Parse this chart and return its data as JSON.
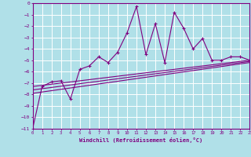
{
  "xlabel": "Windchill (Refroidissement éolien,°C)",
  "ylabel": "",
  "bg_color": "#b0e0e8",
  "line_color": "#800080",
  "grid_color": "#ffffff",
  "xlim": [
    0,
    23
  ],
  "ylim": [
    -11,
    0
  ],
  "xticks": [
    0,
    1,
    2,
    3,
    4,
    5,
    6,
    7,
    8,
    9,
    10,
    11,
    12,
    13,
    14,
    15,
    16,
    17,
    18,
    19,
    20,
    21,
    22,
    23
  ],
  "yticks": [
    0,
    -1,
    -2,
    -3,
    -4,
    -5,
    -6,
    -7,
    -8,
    -9,
    -10,
    -11
  ],
  "series_x": [
    0,
    1,
    2,
    3,
    4,
    5,
    6,
    7,
    8,
    9,
    10,
    11,
    12,
    13,
    14,
    15,
    16,
    17,
    18,
    19,
    20,
    21,
    22,
    23
  ],
  "series_y": [
    -11,
    -7.3,
    -6.9,
    -6.8,
    -8.4,
    -5.8,
    -5.5,
    -4.7,
    -5.2,
    -4.3,
    -2.6,
    -0.3,
    -4.5,
    -1.8,
    -5.2,
    -0.8,
    -2.2,
    -4.0,
    -3.1,
    -5.0,
    -5.0,
    -4.7,
    -4.7,
    -5.0
  ],
  "straight_lines": [
    {
      "x": [
        0,
        23
      ],
      "y": [
        -7.3,
        -5.0
      ]
    },
    {
      "x": [
        0,
        23
      ],
      "y": [
        -7.6,
        -5.1
      ]
    },
    {
      "x": [
        0,
        23
      ],
      "y": [
        -7.9,
        -5.2
      ]
    }
  ]
}
